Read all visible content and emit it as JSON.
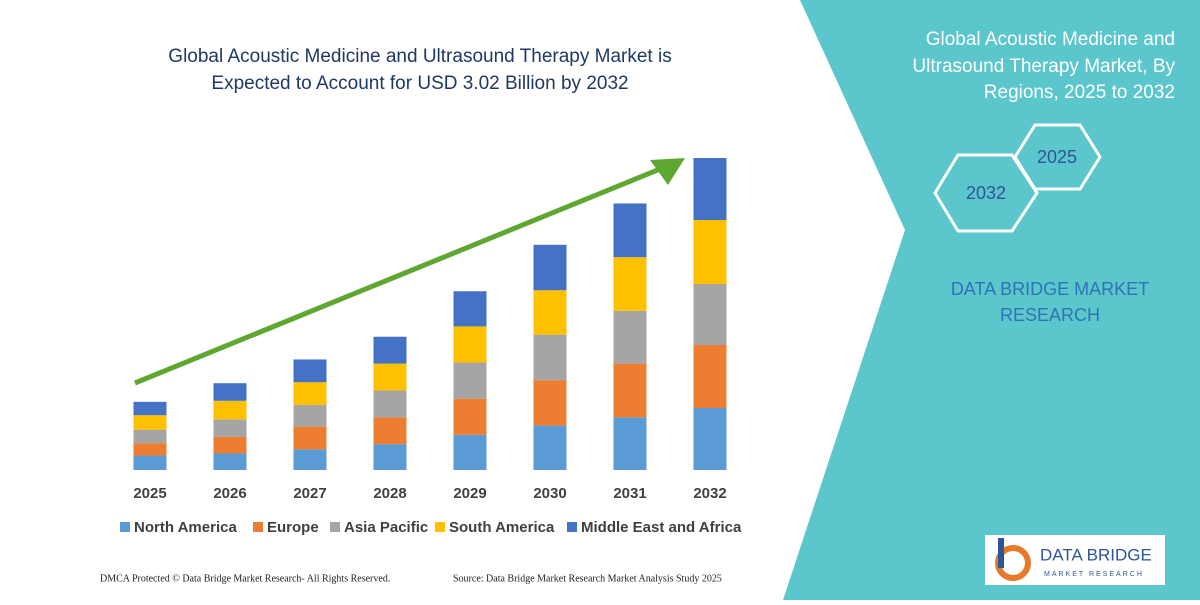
{
  "chart_data": {
    "type": "stacked-bar",
    "title": [
      "Global Acoustic Medicine and Ultrasound Therapy Market is",
      "Expected to Account for USD 3.02 Billion by 2032"
    ],
    "categories": [
      "2025",
      "2026",
      "2027",
      "2028",
      "2029",
      "2030",
      "2031",
      "2032"
    ],
    "series": [
      {
        "name": "North America",
        "color": "#5b9bd5",
        "values": [
          0.14,
          0.16,
          0.2,
          0.25,
          0.34,
          0.43,
          0.51,
          0.6
        ]
      },
      {
        "name": "Europe",
        "color": "#ed7d31",
        "values": [
          0.12,
          0.16,
          0.22,
          0.26,
          0.35,
          0.44,
          0.52,
          0.61
        ]
      },
      {
        "name": "Asia Pacific",
        "color": "#a5a5a5",
        "values": [
          0.13,
          0.17,
          0.21,
          0.26,
          0.35,
          0.44,
          0.51,
          0.59
        ]
      },
      {
        "name": "South America",
        "color": "#ffc000",
        "values": [
          0.14,
          0.18,
          0.22,
          0.26,
          0.35,
          0.43,
          0.52,
          0.62
        ]
      },
      {
        "name": "Middle East and Africa",
        "color": "#4472c4",
        "values": [
          0.13,
          0.17,
          0.22,
          0.26,
          0.34,
          0.44,
          0.52,
          0.6
        ]
      }
    ]
  },
  "side_panel": {
    "title": [
      "Global Acoustic Medicine and",
      "Ultrasound Therapy Market, By",
      "Regions, 2025 to 2032"
    ],
    "hexagons": [
      "2032",
      "2025"
    ],
    "brand": [
      "DATA BRIDGE MARKET",
      "RESEARCH"
    ]
  },
  "logo": {
    "name": "DATA BRIDGE",
    "tagline": "MARKET RESEARCH"
  },
  "footer": {
    "copyright": "DMCA Protected © Data Bridge Market Research-  All Rights Reserved.",
    "source": "Source: Data Bridge Market Research  Market Analysis Study 2025"
  }
}
